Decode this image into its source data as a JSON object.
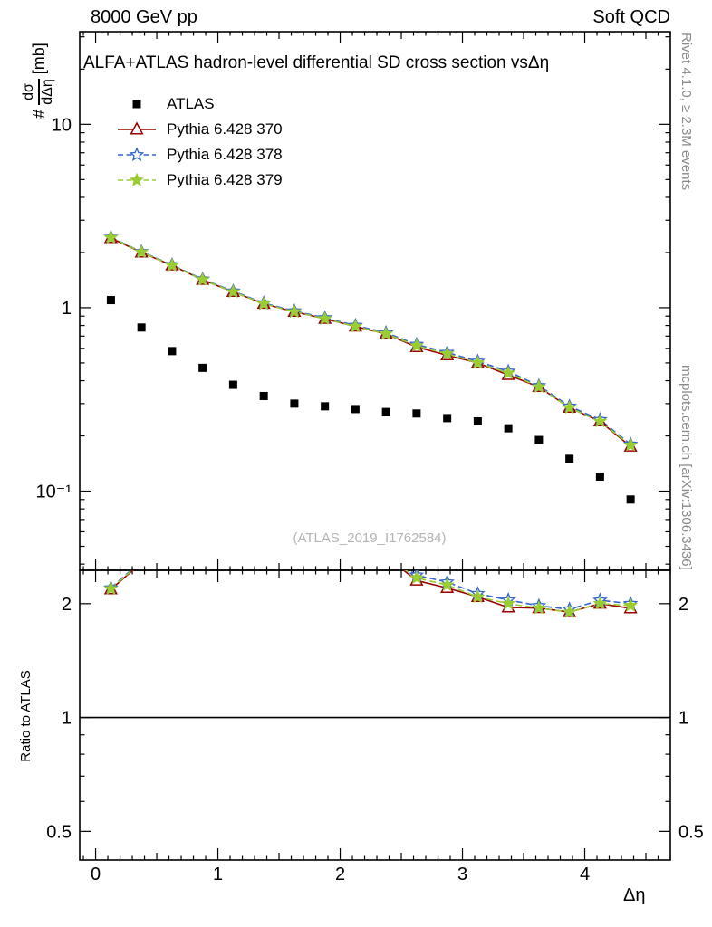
{
  "header": {
    "left": "8000 GeV pp",
    "right": "Soft QCD"
  },
  "side_notes": {
    "top_right": "Rivet 4.1.0, ≥ 2.3M events",
    "bottom_right": "mcplots.cern.ch [arXiv:1306.3436]"
  },
  "watermark": "(ATLAS_2019_I1762584)",
  "chart_data": {
    "type": "line",
    "title": "ALFA+ATLAS hadron-level differential SD cross section vsΔη",
    "xlabel": "Δη",
    "ylabel": {
      "prefix": "#",
      "numerator": "dσ",
      "denominator": "dΔη",
      "suffix": "[mb]"
    },
    "x": [
      0.125,
      0.375,
      0.625,
      0.875,
      1.125,
      1.375,
      1.625,
      1.875,
      2.125,
      2.375,
      2.625,
      2.875,
      3.125,
      3.375,
      3.625,
      3.875,
      4.125,
      4.375
    ],
    "series": [
      {
        "name": "ATLAS",
        "color": "#000000",
        "marker": "filled-square",
        "line": "none",
        "values": [
          1.1,
          0.78,
          0.58,
          0.47,
          0.38,
          0.33,
          0.3,
          0.29,
          0.28,
          0.27,
          0.265,
          0.25,
          0.24,
          0.22,
          0.19,
          0.15,
          0.12,
          0.09
        ]
      },
      {
        "name": "Pythia 6.428 370",
        "color": "#990000",
        "marker": "open-triangle",
        "line": "solid",
        "values": [
          2.4,
          2.0,
          1.7,
          1.42,
          1.22,
          1.05,
          0.95,
          0.87,
          0.79,
          0.72,
          0.61,
          0.55,
          0.5,
          0.43,
          0.37,
          0.285,
          0.24,
          0.175
        ]
      },
      {
        "name": "Pythia 6.428 378",
        "color": "#3366cc",
        "marker": "open-star",
        "line": "dashed",
        "values": [
          2.42,
          2.02,
          1.71,
          1.43,
          1.23,
          1.06,
          0.96,
          0.88,
          0.8,
          0.73,
          0.63,
          0.57,
          0.51,
          0.45,
          0.375,
          0.29,
          0.245,
          0.18
        ]
      },
      {
        "name": "Pythia 6.428 379",
        "color": "#9acd32",
        "marker": "filled-star",
        "line": "dashed",
        "values": [
          2.41,
          2.01,
          1.7,
          1.42,
          1.22,
          1.05,
          0.95,
          0.87,
          0.79,
          0.72,
          0.62,
          0.56,
          0.5,
          0.44,
          0.37,
          0.285,
          0.24,
          0.178
        ]
      }
    ],
    "x_axis": {
      "lim": [
        -0.13,
        4.7
      ],
      "major_ticks": [
        0,
        1,
        2,
        3,
        4
      ],
      "minor_step": 0.1
    },
    "y_axis_main": {
      "log": true,
      "lim": [
        0.037,
        32
      ],
      "major_ticks": [
        0.1,
        1,
        10
      ],
      "labels": [
        "10⁻¹",
        "1",
        "10"
      ]
    },
    "ratio_panel": {
      "ylabel": "Ratio to ATLAS",
      "log": true,
      "lim": [
        0.42,
        2.45
      ],
      "major_ticks": [
        0.5,
        1,
        2
      ],
      "labels": [
        "0.5",
        "1",
        "2"
      ],
      "reference": 1,
      "definition": "model / ATLAS"
    },
    "frame_color": "#000000"
  }
}
